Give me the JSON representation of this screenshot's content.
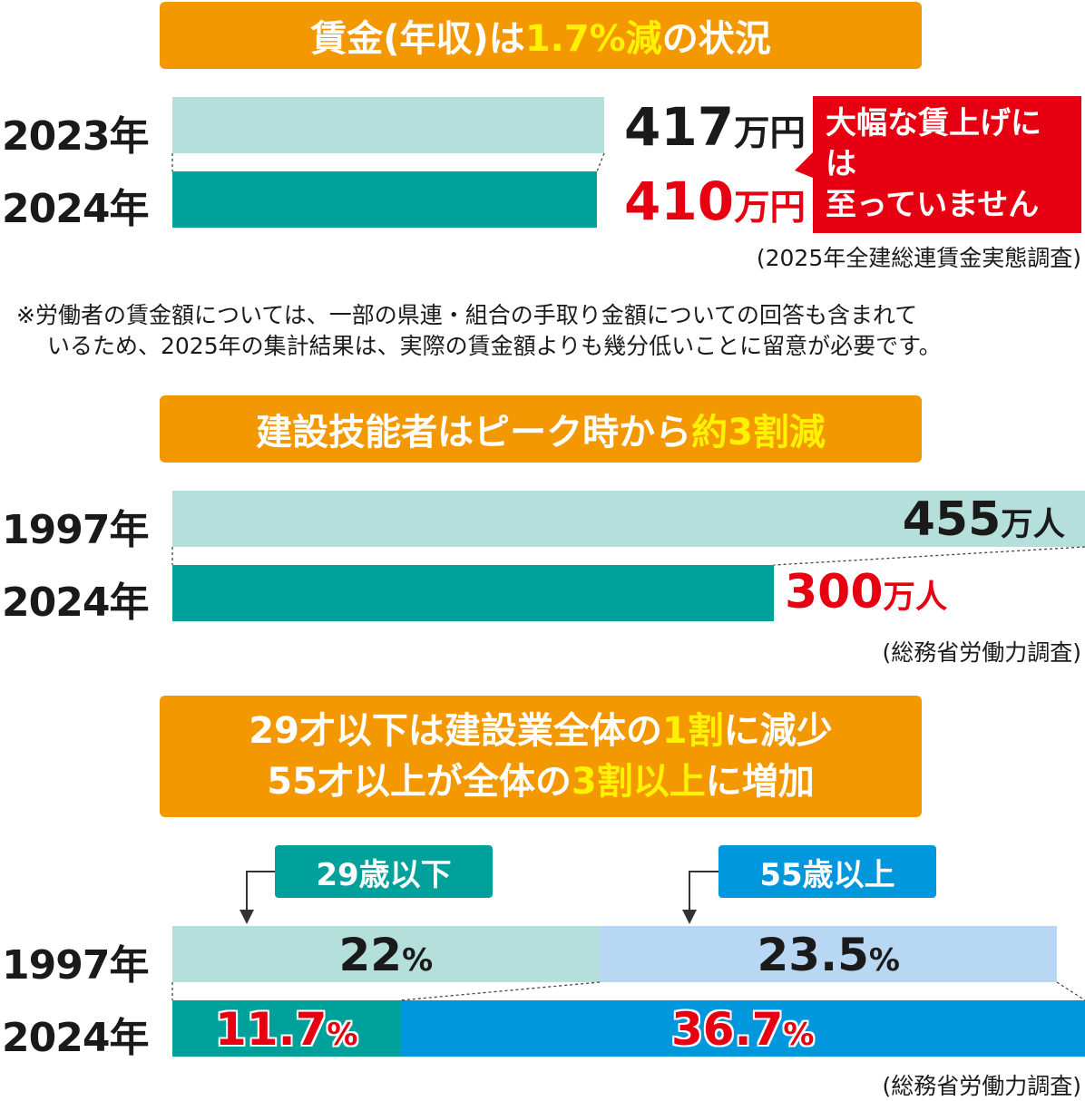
{
  "chart_data": [
    {
      "type": "bar",
      "title": "賃金(年収)は1.7%減の状況",
      "title_parts": {
        "pre": "賃金(年収)は ",
        "hl": "1.7%減",
        "post": " の状況"
      },
      "categories": [
        "2023年",
        "2024年"
      ],
      "values": [
        417,
        410
      ],
      "value_labels": [
        {
          "num": "417",
          "unit": "万円"
        },
        {
          "num": "410",
          "unit": "万円"
        }
      ],
      "callout": [
        "大幅な賃上げには",
        "至っていません"
      ],
      "source": "(2025年全建総連賃金実態調査)",
      "note": [
        "※労働者の賃金額については、一部の県連・組合の手取り金額についての回答も含まれて",
        "いるため、2025年の集計結果は、実際の賃金額よりも幾分低いことに留意が必要です。"
      ]
    },
    {
      "type": "bar",
      "title": "建設技能者はピークから約3割減",
      "title_parts": {
        "pre": "建設技能者はピーク時から",
        "hl": "約3割減",
        "post": ""
      },
      "categories": [
        "1997年",
        "2024年"
      ],
      "values": [
        455,
        300
      ],
      "value_labels": [
        {
          "num": "455",
          "unit": "万人"
        },
        {
          "num": "300",
          "unit": "万人"
        }
      ],
      "source": "(総務省労働力調査)"
    },
    {
      "type": "bar",
      "stacked": true,
      "title_lines": [
        {
          "pre": "29才以下は建設業全体の",
          "hl": "1割",
          "post": "に減少"
        },
        {
          "pre": "55才以上が全体の",
          "hl": "3割以上",
          "post": "に増加"
        }
      ],
      "categories": [
        "1997年",
        "2024年"
      ],
      "series": [
        {
          "name": "29歳以下",
          "values": [
            22,
            11.7
          ]
        },
        {
          "name": "55歳以上",
          "values": [
            23.5,
            36.7
          ]
        }
      ],
      "value_labels": [
        {
          "num": "22",
          "unit": "%"
        },
        {
          "num": "23.5",
          "unit": "%"
        },
        {
          "num": "11.7",
          "unit": "%"
        },
        {
          "num": "36.7",
          "unit": "%"
        }
      ],
      "source": "(総務省労働力調査)"
    }
  ],
  "colors": {
    "banner": "#f39800",
    "highlight": "#fff200",
    "light_teal": "#b5dfdb",
    "teal": "#00a19a",
    "light_blue": "#b8d7f2",
    "blue": "#0097dc",
    "red": "#e60012"
  }
}
